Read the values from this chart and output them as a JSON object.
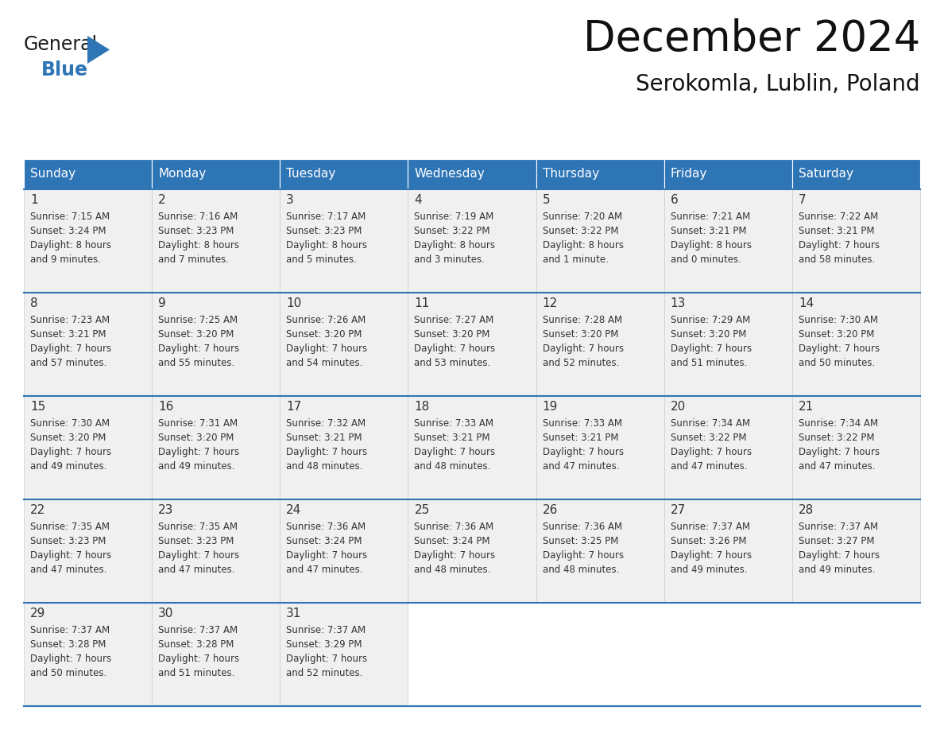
{
  "title": "December 2024",
  "subtitle": "Serokomla, Lublin, Poland",
  "header_bg": "#2e75b6",
  "header_text_color": "#ffffff",
  "cell_bg_light": "#f0f0f0",
  "cell_bg_white": "#ffffff",
  "line_color": "#2e75b6",
  "text_color": "#333333",
  "day_headers": [
    "Sunday",
    "Monday",
    "Tuesday",
    "Wednesday",
    "Thursday",
    "Friday",
    "Saturday"
  ],
  "days": [
    {
      "day": 1,
      "col": 0,
      "row": 0,
      "sunrise": "7:15 AM",
      "sunset": "3:24 PM",
      "daylight_h": "8 hours",
      "daylight_m": "and 9 minutes."
    },
    {
      "day": 2,
      "col": 1,
      "row": 0,
      "sunrise": "7:16 AM",
      "sunset": "3:23 PM",
      "daylight_h": "8 hours",
      "daylight_m": "and 7 minutes."
    },
    {
      "day": 3,
      "col": 2,
      "row": 0,
      "sunrise": "7:17 AM",
      "sunset": "3:23 PM",
      "daylight_h": "8 hours",
      "daylight_m": "and 5 minutes."
    },
    {
      "day": 4,
      "col": 3,
      "row": 0,
      "sunrise": "7:19 AM",
      "sunset": "3:22 PM",
      "daylight_h": "8 hours",
      "daylight_m": "and 3 minutes."
    },
    {
      "day": 5,
      "col": 4,
      "row": 0,
      "sunrise": "7:20 AM",
      "sunset": "3:22 PM",
      "daylight_h": "8 hours",
      "daylight_m": "and 1 minute."
    },
    {
      "day": 6,
      "col": 5,
      "row": 0,
      "sunrise": "7:21 AM",
      "sunset": "3:21 PM",
      "daylight_h": "8 hours",
      "daylight_m": "and 0 minutes."
    },
    {
      "day": 7,
      "col": 6,
      "row": 0,
      "sunrise": "7:22 AM",
      "sunset": "3:21 PM",
      "daylight_h": "7 hours",
      "daylight_m": "and 58 minutes."
    },
    {
      "day": 8,
      "col": 0,
      "row": 1,
      "sunrise": "7:23 AM",
      "sunset": "3:21 PM",
      "daylight_h": "7 hours",
      "daylight_m": "and 57 minutes."
    },
    {
      "day": 9,
      "col": 1,
      "row": 1,
      "sunrise": "7:25 AM",
      "sunset": "3:20 PM",
      "daylight_h": "7 hours",
      "daylight_m": "and 55 minutes."
    },
    {
      "day": 10,
      "col": 2,
      "row": 1,
      "sunrise": "7:26 AM",
      "sunset": "3:20 PM",
      "daylight_h": "7 hours",
      "daylight_m": "and 54 minutes."
    },
    {
      "day": 11,
      "col": 3,
      "row": 1,
      "sunrise": "7:27 AM",
      "sunset": "3:20 PM",
      "daylight_h": "7 hours",
      "daylight_m": "and 53 minutes."
    },
    {
      "day": 12,
      "col": 4,
      "row": 1,
      "sunrise": "7:28 AM",
      "sunset": "3:20 PM",
      "daylight_h": "7 hours",
      "daylight_m": "and 52 minutes."
    },
    {
      "day": 13,
      "col": 5,
      "row": 1,
      "sunrise": "7:29 AM",
      "sunset": "3:20 PM",
      "daylight_h": "7 hours",
      "daylight_m": "and 51 minutes."
    },
    {
      "day": 14,
      "col": 6,
      "row": 1,
      "sunrise": "7:30 AM",
      "sunset": "3:20 PM",
      "daylight_h": "7 hours",
      "daylight_m": "and 50 minutes."
    },
    {
      "day": 15,
      "col": 0,
      "row": 2,
      "sunrise": "7:30 AM",
      "sunset": "3:20 PM",
      "daylight_h": "7 hours",
      "daylight_m": "and 49 minutes."
    },
    {
      "day": 16,
      "col": 1,
      "row": 2,
      "sunrise": "7:31 AM",
      "sunset": "3:20 PM",
      "daylight_h": "7 hours",
      "daylight_m": "and 49 minutes."
    },
    {
      "day": 17,
      "col": 2,
      "row": 2,
      "sunrise": "7:32 AM",
      "sunset": "3:21 PM",
      "daylight_h": "7 hours",
      "daylight_m": "and 48 minutes."
    },
    {
      "day": 18,
      "col": 3,
      "row": 2,
      "sunrise": "7:33 AM",
      "sunset": "3:21 PM",
      "daylight_h": "7 hours",
      "daylight_m": "and 48 minutes."
    },
    {
      "day": 19,
      "col": 4,
      "row": 2,
      "sunrise": "7:33 AM",
      "sunset": "3:21 PM",
      "daylight_h": "7 hours",
      "daylight_m": "and 47 minutes."
    },
    {
      "day": 20,
      "col": 5,
      "row": 2,
      "sunrise": "7:34 AM",
      "sunset": "3:22 PM",
      "daylight_h": "7 hours",
      "daylight_m": "and 47 minutes."
    },
    {
      "day": 21,
      "col": 6,
      "row": 2,
      "sunrise": "7:34 AM",
      "sunset": "3:22 PM",
      "daylight_h": "7 hours",
      "daylight_m": "and 47 minutes."
    },
    {
      "day": 22,
      "col": 0,
      "row": 3,
      "sunrise": "7:35 AM",
      "sunset": "3:23 PM",
      "daylight_h": "7 hours",
      "daylight_m": "and 47 minutes."
    },
    {
      "day": 23,
      "col": 1,
      "row": 3,
      "sunrise": "7:35 AM",
      "sunset": "3:23 PM",
      "daylight_h": "7 hours",
      "daylight_m": "and 47 minutes."
    },
    {
      "day": 24,
      "col": 2,
      "row": 3,
      "sunrise": "7:36 AM",
      "sunset": "3:24 PM",
      "daylight_h": "7 hours",
      "daylight_m": "and 47 minutes."
    },
    {
      "day": 25,
      "col": 3,
      "row": 3,
      "sunrise": "7:36 AM",
      "sunset": "3:24 PM",
      "daylight_h": "7 hours",
      "daylight_m": "and 48 minutes."
    },
    {
      "day": 26,
      "col": 4,
      "row": 3,
      "sunrise": "7:36 AM",
      "sunset": "3:25 PM",
      "daylight_h": "7 hours",
      "daylight_m": "and 48 minutes."
    },
    {
      "day": 27,
      "col": 5,
      "row": 3,
      "sunrise": "7:37 AM",
      "sunset": "3:26 PM",
      "daylight_h": "7 hours",
      "daylight_m": "and 49 minutes."
    },
    {
      "day": 28,
      "col": 6,
      "row": 3,
      "sunrise": "7:37 AM",
      "sunset": "3:27 PM",
      "daylight_h": "7 hours",
      "daylight_m": "and 49 minutes."
    },
    {
      "day": 29,
      "col": 0,
      "row": 4,
      "sunrise": "7:37 AM",
      "sunset": "3:28 PM",
      "daylight_h": "7 hours",
      "daylight_m": "and 50 minutes."
    },
    {
      "day": 30,
      "col": 1,
      "row": 4,
      "sunrise": "7:37 AM",
      "sunset": "3:28 PM",
      "daylight_h": "7 hours",
      "daylight_m": "and 51 minutes."
    },
    {
      "day": 31,
      "col": 2,
      "row": 4,
      "sunrise": "7:37 AM",
      "sunset": "3:29 PM",
      "daylight_h": "7 hours",
      "daylight_m": "and 52 minutes."
    }
  ],
  "num_rows": 5,
  "num_cols": 7
}
